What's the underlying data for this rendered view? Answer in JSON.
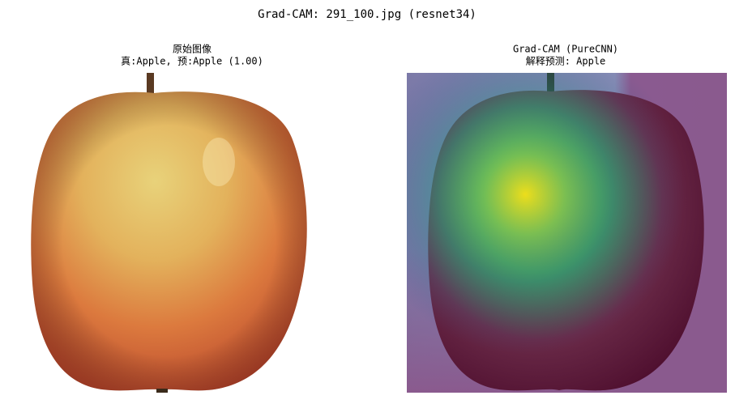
{
  "title": "Grad-CAM: 291_100.jpg (resnet34)",
  "panels": [
    {
      "title_lines": [
        "原始图像",
        "真:Apple, 预:Apple (1.00)"
      ]
    },
    {
      "title_lines": [
        "Grad-CAM (PureCNN)",
        "解释预测: Apple"
      ]
    }
  ]
}
